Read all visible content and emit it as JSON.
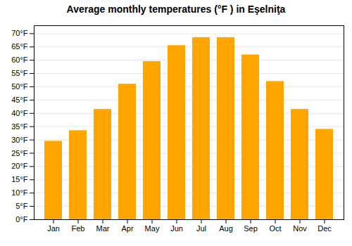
{
  "chart_data": {
    "type": "bar",
    "title": "Average monthly temperatures (°F ) in Eşelniţa",
    "categories": [
      "Jan",
      "Feb",
      "Mar",
      "Apr",
      "May",
      "Jun",
      "Jul",
      "Aug",
      "Sep",
      "Oct",
      "Nov",
      "Dec"
    ],
    "values": [
      29.5,
      33.5,
      41.5,
      51.0,
      59.5,
      65.5,
      68.5,
      68.5,
      62.0,
      52.0,
      41.5,
      34.0
    ],
    "color": "#FFA500",
    "ylim": [
      0,
      73
    ],
    "yticks": [
      {
        "value": 0,
        "label": "0°F"
      },
      {
        "value": 5,
        "label": "5°F"
      },
      {
        "value": 10,
        "label": "10°F"
      },
      {
        "value": 15,
        "label": "15°F"
      },
      {
        "value": 20,
        "label": "20°F"
      },
      {
        "value": 25,
        "label": "25°F"
      },
      {
        "value": 30,
        "label": "30°F"
      },
      {
        "value": 35,
        "label": "35°F"
      },
      {
        "value": 40,
        "label": "40°F"
      },
      {
        "value": 45,
        "label": "45°F"
      },
      {
        "value": 50,
        "label": "50°F"
      },
      {
        "value": 55,
        "label": "55°F"
      },
      {
        "value": 60,
        "label": "60°F"
      },
      {
        "value": 65,
        "label": "65°F"
      },
      {
        "value": 70,
        "label": "70°F"
      }
    ],
    "grid": true
  }
}
